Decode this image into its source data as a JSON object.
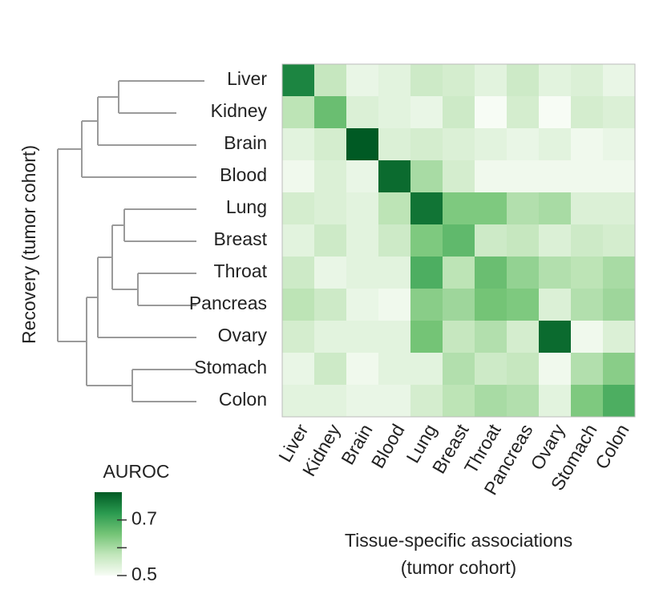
{
  "chart_data": {
    "type": "heatmap",
    "x_label": [
      "Tissue-specific associations",
      "(tumor cohort)"
    ],
    "y_label": "Recovery (tumor cohort)",
    "x_categories": [
      "Liver",
      "Kidney",
      "Brain",
      "Blood",
      "Lung",
      "Breast",
      "Throat",
      "Pancreas",
      "Ovary",
      "Stomach",
      "Colon"
    ],
    "y_categories": [
      "Liver",
      "Kidney",
      "Brain",
      "Blood",
      "Lung",
      "Breast",
      "Throat",
      "Pancreas",
      "Ovary",
      "Stomach",
      "Colon"
    ],
    "z": [
      [
        0.75,
        0.57,
        0.52,
        0.53,
        0.56,
        0.55,
        0.53,
        0.56,
        0.53,
        0.54,
        0.52
      ],
      [
        0.58,
        0.66,
        0.54,
        0.53,
        0.52,
        0.56,
        0.5,
        0.55,
        0.5,
        0.55,
        0.54
      ],
      [
        0.53,
        0.55,
        0.8,
        0.54,
        0.55,
        0.54,
        0.53,
        0.52,
        0.53,
        0.51,
        0.52
      ],
      [
        0.51,
        0.54,
        0.52,
        0.78,
        0.6,
        0.55,
        0.51,
        0.51,
        0.51,
        0.51,
        0.51
      ],
      [
        0.55,
        0.54,
        0.53,
        0.58,
        0.77,
        0.64,
        0.64,
        0.59,
        0.6,
        0.54,
        0.54
      ],
      [
        0.53,
        0.56,
        0.53,
        0.56,
        0.64,
        0.67,
        0.56,
        0.57,
        0.54,
        0.56,
        0.55
      ],
      [
        0.56,
        0.52,
        0.53,
        0.53,
        0.69,
        0.58,
        0.66,
        0.62,
        0.59,
        0.58,
        0.6
      ],
      [
        0.58,
        0.56,
        0.52,
        0.51,
        0.63,
        0.61,
        0.65,
        0.64,
        0.54,
        0.59,
        0.61
      ],
      [
        0.55,
        0.53,
        0.53,
        0.53,
        0.65,
        0.57,
        0.59,
        0.55,
        0.78,
        0.51,
        0.54
      ],
      [
        0.52,
        0.56,
        0.51,
        0.53,
        0.53,
        0.59,
        0.56,
        0.57,
        0.51,
        0.59,
        0.63
      ],
      [
        0.53,
        0.53,
        0.52,
        0.52,
        0.55,
        0.58,
        0.6,
        0.59,
        0.53,
        0.64,
        0.69
      ]
    ],
    "colorscale": [
      "#f7fcf5",
      "#c2e6bb",
      "#74c476",
      "#2a9a4f",
      "#005a24"
    ],
    "colorbar_title": "AUROC",
    "zlim": [
      0.5,
      0.8
    ],
    "colorbar_ticks": [
      0.5,
      0.7
    ],
    "colorbar_minor_ticks": [
      0.6
    ]
  }
}
